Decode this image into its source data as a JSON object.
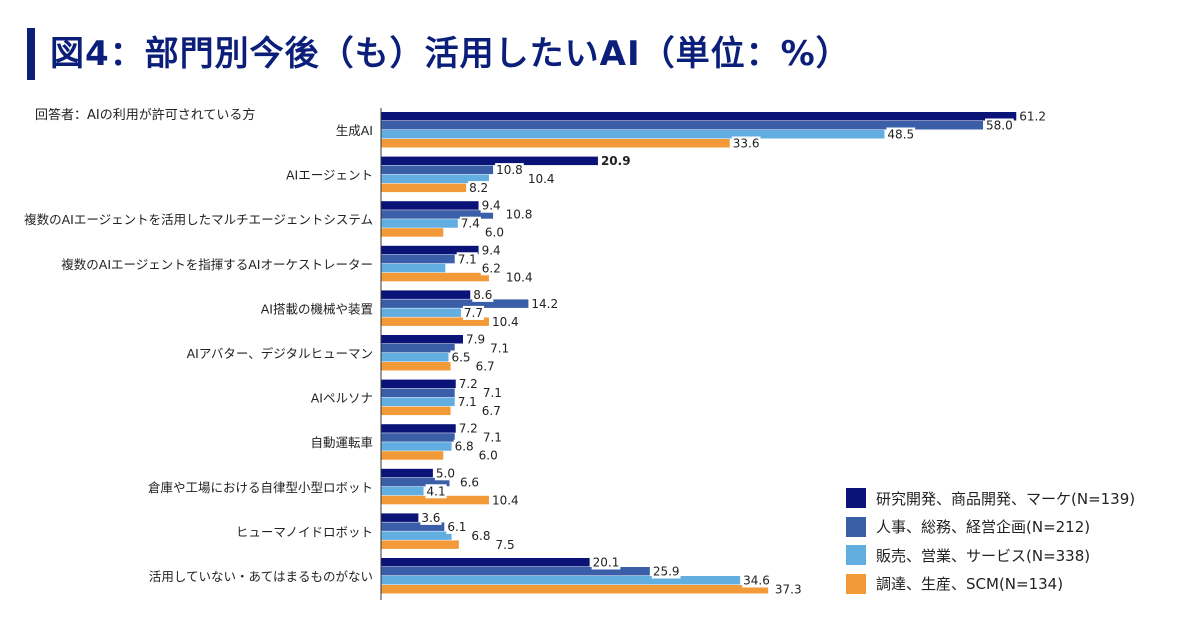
{
  "title": "図4：部門別今後（も）活用したいAI（単位：%）",
  "chart_data": {
    "type": "bar",
    "orientation": "horizontal",
    "title": "図4：部門別今後（も）活用したいAI（単位：%）",
    "subtitle": "回答者：AIの利用が許可されている方",
    "xlabel": "",
    "ylabel": "",
    "xlim": [
      0,
      65
    ],
    "grid": false,
    "legend_position": "bottom-right",
    "categories": [
      "生成AI",
      "AIエージェント",
      "複数のAIエージェントを活用したマルチエージェントシステム",
      "複数のAIエージェントを指揮するAIオーケストレーター",
      "AI搭載の機械や装置",
      "AIアバター、デジタルヒューマン",
      "AIペルソナ",
      "自動運転車",
      "倉庫や工場における自律型小型ロボット",
      "ヒューマノイドロボット",
      "活用していない・あてはまるものがない"
    ],
    "series": [
      {
        "name": "研究開発、商品開発、マーケ(N=139)",
        "color": "#0a1478",
        "values": [
          61.2,
          20.9,
          9.4,
          9.4,
          8.6,
          7.9,
          7.2,
          7.2,
          5.0,
          3.6,
          20.1
        ]
      },
      {
        "name": "人事、総務、経営企画(N=212)",
        "color": "#3a5fa8",
        "values": [
          58.0,
          10.8,
          10.8,
          7.1,
          14.2,
          7.1,
          7.1,
          7.1,
          6.6,
          6.1,
          25.9
        ]
      },
      {
        "name": "販売、営業、サービス(N=338)",
        "color": "#62aee0",
        "values": [
          48.5,
          10.4,
          7.4,
          6.2,
          7.7,
          6.5,
          7.1,
          6.8,
          4.1,
          6.8,
          34.6
        ]
      },
      {
        "name": "調達、生産、SCM(N=134)",
        "color": "#f29a38",
        "values": [
          33.6,
          8.2,
          6.0,
          10.4,
          10.4,
          6.7,
          6.7,
          6.0,
          10.4,
          7.5,
          37.3
        ]
      }
    ]
  }
}
